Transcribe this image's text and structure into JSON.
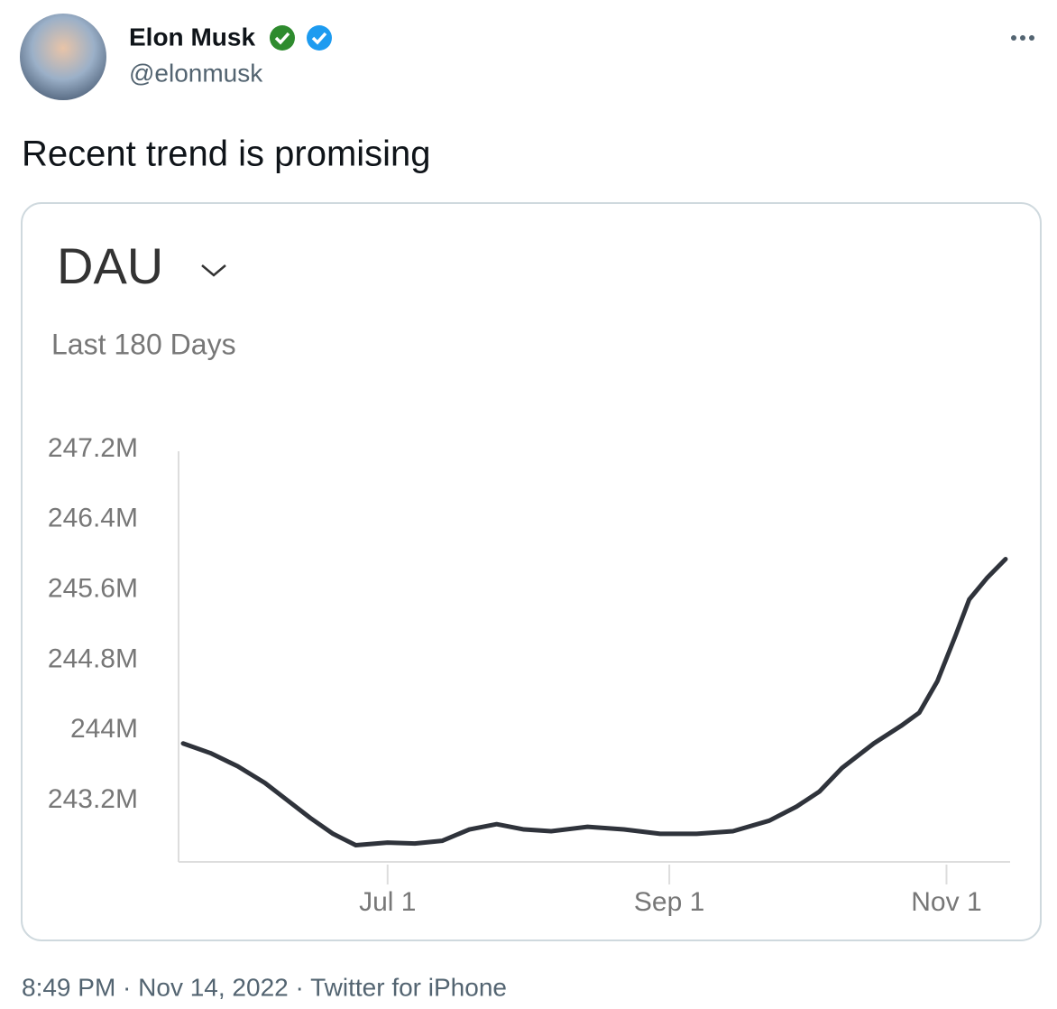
{
  "tweet": {
    "name": "Elon Musk",
    "handle": "@elonmusk",
    "text": "Recent trend is promising",
    "footer": "8:49 PM · Nov 14, 2022 · Twitter for iPhone"
  },
  "chart_data": {
    "type": "line",
    "title": "DAU",
    "subtitle": "Last 180 Days",
    "x": [
      137,
      143,
      149,
      155,
      160,
      165,
      170,
      175,
      182,
      188,
      194,
      200,
      206,
      212,
      218,
      226,
      234,
      242,
      250,
      258,
      266,
      272,
      277,
      282,
      289,
      295,
      299,
      303,
      307,
      310,
      314,
      318
    ],
    "series": [
      {
        "color": "#2f333b",
        "values": [
          243850000,
          243740000,
          243590000,
          243400000,
          243200000,
          243000000,
          242820000,
          242690000,
          242720000,
          242710000,
          242740000,
          242870000,
          242930000,
          242870000,
          242850000,
          242900000,
          242870000,
          242820000,
          242820000,
          242850000,
          242970000,
          243130000,
          243300000,
          243570000,
          243850000,
          244050000,
          244200000,
          244560000,
          245080000,
          245490000,
          245740000,
          245950000
        ]
      }
    ],
    "xlim": [
      136,
      319
    ],
    "xticks": [
      {
        "value": 182,
        "label": "Jul 1"
      },
      {
        "value": 244,
        "label": "Sep 1"
      },
      {
        "value": 305,
        "label": "Nov 1"
      }
    ],
    "ylim": [
      242500000,
      247200000
    ],
    "yticks": [
      {
        "value": 243200000,
        "label": "243.2M"
      },
      {
        "value": 244000000,
        "label": "244M"
      },
      {
        "value": 244800000,
        "label": "244.8M"
      },
      {
        "value": 245600000,
        "label": "245.6M"
      },
      {
        "value": 246400000,
        "label": "246.4M"
      },
      {
        "value": 247200000,
        "label": "247.2M"
      }
    ]
  }
}
